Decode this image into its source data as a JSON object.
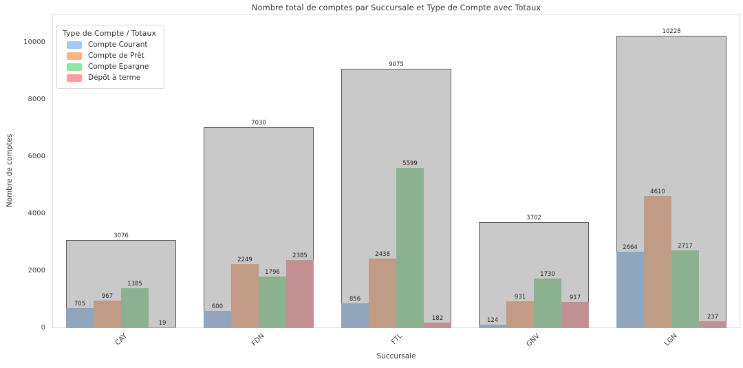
{
  "chart_data": {
    "type": "bar",
    "title": "Nombre total de comptes par Succursale et Type de Compte avec Totaux",
    "xlabel": "Succursale",
    "ylabel": "Nombre de comptes",
    "categories": [
      "CAY",
      "FDN",
      "FTL",
      "GNV",
      "LGN"
    ],
    "totals": {
      "name": "Totaux",
      "values": [
        3076,
        7030,
        9075,
        3702,
        10228
      ],
      "bar_color": "#c9c9c9",
      "bar_border_color": "#5a5a5a"
    },
    "series": [
      {
        "name": "Compte Courant",
        "values": [
          705,
          600,
          856,
          124,
          2664
        ],
        "bar_color": "#8fa6bd",
        "legend_color": "#a1c9f4"
      },
      {
        "name": "Compte de Prêt",
        "values": [
          967,
          2249,
          2438,
          931,
          4610
        ],
        "bar_color": "#c09b86",
        "legend_color": "#ffb482"
      },
      {
        "name": "Compte Epargne",
        "values": [
          1385,
          1796,
          5599,
          1730,
          2717
        ],
        "bar_color": "#8cb191",
        "legend_color": "#8de5a1"
      },
      {
        "name": "Dépôt à terme",
        "values": [
          19,
          2385,
          182,
          917,
          237
        ],
        "bar_color": "#c29093",
        "legend_color": "#ff9f9b"
      }
    ],
    "legend": {
      "title": "Type de Compte / Totaux",
      "position": "upper left"
    },
    "yticks": [
      0,
      2000,
      4000,
      6000,
      8000,
      10000
    ],
    "ylim": [
      0,
      11000
    ],
    "grid": false,
    "bar_group_fraction": 0.8
  }
}
